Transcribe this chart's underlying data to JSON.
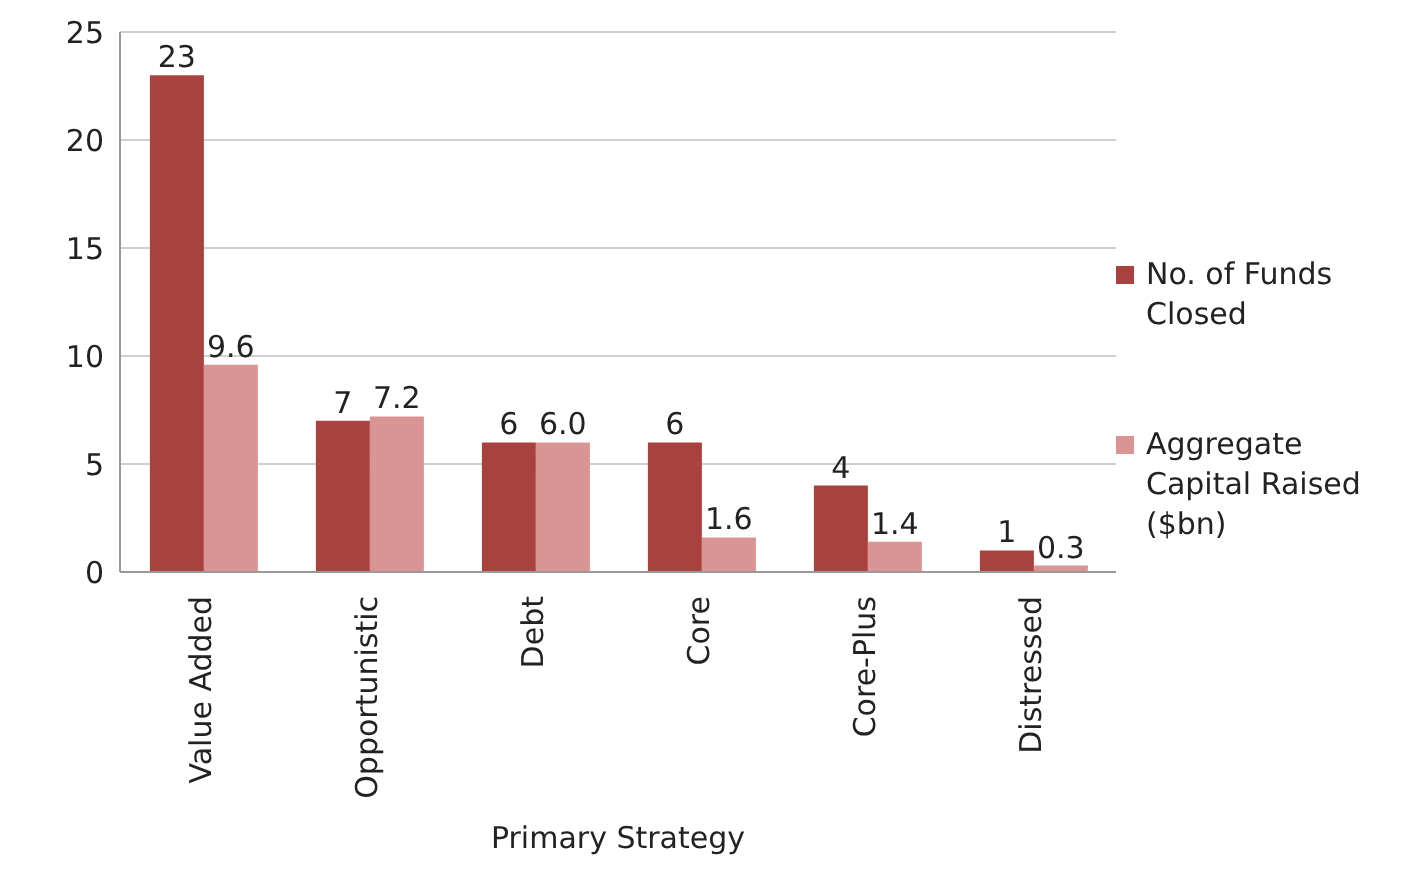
{
  "chart_data": {
    "type": "bar",
    "xlabel": "Primary Strategy",
    "categories": [
      "Value Added",
      "Opportunistic",
      "Debt",
      "Core",
      "Core-Plus",
      "Distressed"
    ],
    "series": [
      {
        "name": "No. of Funds Closed",
        "color": "#a8423f",
        "values": [
          23,
          7,
          6,
          6,
          4,
          1
        ],
        "value_labels": [
          "23",
          "7",
          "6",
          "6",
          "4",
          "1"
        ]
      },
      {
        "name": "Aggregate Capital Raised ($bn)",
        "color": "#d89594",
        "values": [
          9.6,
          7.2,
          6.0,
          1.6,
          1.4,
          0.3
        ],
        "value_labels": [
          "9.6",
          "7.2",
          "6.0",
          "1.6",
          "1.4",
          "0.3"
        ]
      }
    ],
    "ylim": [
      0,
      25
    ],
    "yticks": [
      0,
      5,
      10,
      15,
      20,
      25
    ],
    "grid": "y",
    "legend": "right"
  }
}
